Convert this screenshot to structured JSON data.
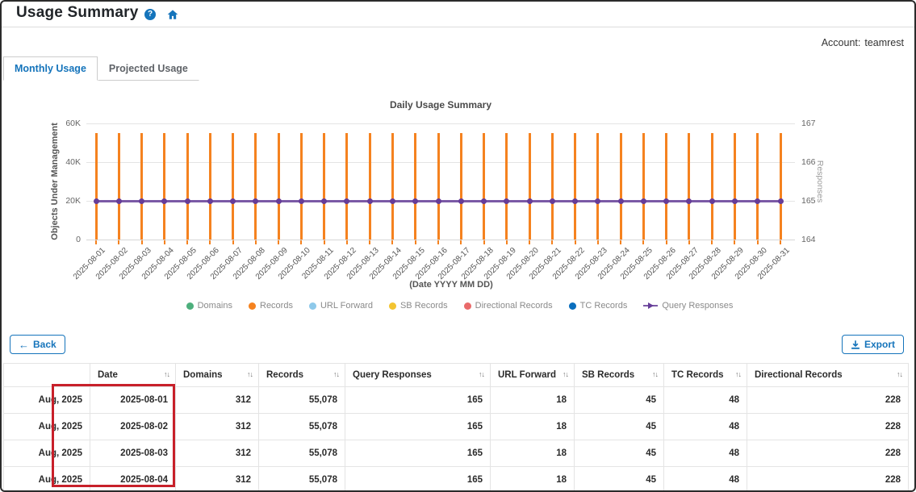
{
  "page": {
    "title": "Usage Summary"
  },
  "header": {
    "help_icon": "question-mark-circle",
    "home_icon": "home",
    "account_label": "Account:",
    "account_value": "teamrest"
  },
  "tabs": [
    {
      "label": "Monthly Usage",
      "active": true
    },
    {
      "label": "Projected Usage",
      "active": false
    }
  ],
  "chart_data": {
    "type": "bar+line combo",
    "title": "Daily Usage Summary",
    "xlabel": "(Date YYYY MM DD)",
    "ylabel_left": "Objects Under Management",
    "ylabel_right": "Responses",
    "ylim_left": [
      0,
      60000
    ],
    "ylim_right": [
      164,
      167
    ],
    "yticks_left": {
      "values": [
        0,
        20000,
        40000,
        60000
      ],
      "labels": [
        "0",
        "20K",
        "40K",
        "60K"
      ]
    },
    "yticks_right": {
      "values": [
        164,
        165,
        166,
        167
      ],
      "labels": [
        "164",
        "165",
        "166",
        "167"
      ]
    },
    "grid": true,
    "legend_position": "bottom",
    "x": [
      "2025-08-01",
      "2025-08-02",
      "2025-08-03",
      "2025-08-04",
      "2025-08-05",
      "2025-08-06",
      "2025-08-07",
      "2025-08-08",
      "2025-08-09",
      "2025-08-10",
      "2025-08-11",
      "2025-08-12",
      "2025-08-13",
      "2025-08-14",
      "2025-08-15",
      "2025-08-16",
      "2025-08-17",
      "2025-08-18",
      "2025-08-19",
      "2025-08-20",
      "2025-08-21",
      "2025-08-22",
      "2025-08-23",
      "2025-08-24",
      "2025-08-25",
      "2025-08-26",
      "2025-08-27",
      "2025-08-28",
      "2025-08-29",
      "2025-08-30",
      "2025-08-31"
    ],
    "series": [
      {
        "name": "Domains",
        "type": "bar",
        "axis": "left",
        "color": "#4daf7c",
        "value_each_day": 312
      },
      {
        "name": "Records",
        "type": "bar",
        "axis": "left",
        "color": "#f5821f",
        "value_each_day": 55078
      },
      {
        "name": "URL Forward",
        "type": "bar",
        "axis": "left",
        "color": "#8ec9ea",
        "value_each_day": 18
      },
      {
        "name": "SB Records",
        "type": "bar",
        "axis": "left",
        "color": "#f3c431",
        "value_each_day": 45
      },
      {
        "name": "Directional Records",
        "type": "bar",
        "axis": "left",
        "color": "#e96a6a",
        "value_each_day": 228
      },
      {
        "name": "TC Records",
        "type": "bar",
        "axis": "left",
        "color": "#0a6ebd",
        "value_each_day": 48
      },
      {
        "name": "Query Responses",
        "type": "line",
        "axis": "right",
        "color": "#7b5aa6",
        "marker_color": "#663d99",
        "value_each_day": 165
      }
    ],
    "note": "All series are constant across all 31 days of August 2025"
  },
  "toolbar": {
    "back_label": "Back",
    "back_icon": "arrow-left",
    "back_arrow_glyph": "←",
    "export_label": "Export",
    "export_icon": "download"
  },
  "table": {
    "sort_icon": "↑↓",
    "headers": [
      {
        "label": "",
        "sortable": false
      },
      {
        "label": "Date",
        "sortable": true
      },
      {
        "label": "Domains",
        "sortable": true
      },
      {
        "label": "Records",
        "sortable": true
      },
      {
        "label": "Query Responses",
        "sortable": true
      },
      {
        "label": "URL Forward",
        "sortable": true
      },
      {
        "label": "SB Records",
        "sortable": true
      },
      {
        "label": "TC Records",
        "sortable": true
      },
      {
        "label": "Directional Records",
        "sortable": true
      }
    ],
    "rows": [
      [
        "Aug, 2025",
        "2025-08-01",
        "312",
        "55,078",
        "165",
        "18",
        "45",
        "48",
        "228"
      ],
      [
        "Aug, 2025",
        "2025-08-02",
        "312",
        "55,078",
        "165",
        "18",
        "45",
        "48",
        "228"
      ],
      [
        "Aug, 2025",
        "2025-08-03",
        "312",
        "55,078",
        "165",
        "18",
        "45",
        "48",
        "228"
      ],
      [
        "Aug, 2025",
        "2025-08-04",
        "312",
        "55,078",
        "165",
        "18",
        "45",
        "48",
        "228"
      ]
    ]
  },
  "highlight": {
    "color": "#c8202a"
  },
  "accent_color": "#1574bb"
}
